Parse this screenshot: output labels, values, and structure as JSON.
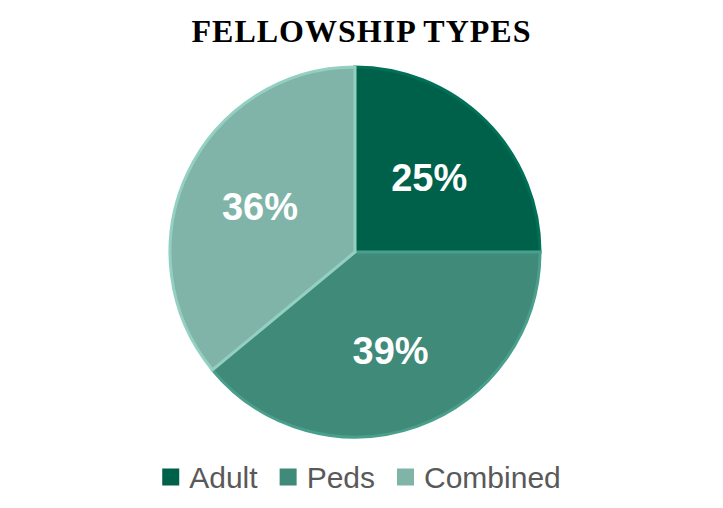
{
  "chart_data": {
    "type": "pie",
    "title": "FELLOWSHIP TYPES",
    "categories": [
      "Adult",
      "Peds",
      "Combined"
    ],
    "values": [
      25,
      39,
      36
    ],
    "value_labels": [
      "25%",
      "39%",
      "36%"
    ],
    "colors": [
      "#00614b",
      "#3f8a79",
      "#80b4a8"
    ],
    "data_labels": true,
    "legend": "bottom"
  }
}
